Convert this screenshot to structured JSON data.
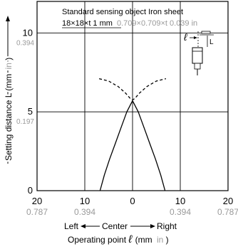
{
  "chart_data": {
    "type": "line",
    "annotation": {
      "line1": "Standard sensing object Iron sheet",
      "line2_main": "18×18×t 1 mm",
      "line2_inch": "0.709×0.709×t 0.039 in"
    },
    "xlabel": {
      "left": "Left",
      "center": "Center",
      "right": "Right",
      "line2_prefix": "Operating point ",
      "symbol": "ℓ",
      "unit_mm": "(mm",
      "unit_in": "in",
      "unit_close": ")"
    },
    "ylabel": {
      "main": "Setting distance L (mm",
      "unit_in": "in",
      "close": ")"
    },
    "diagram_labels": {
      "ell": "ℓ",
      "L": "L"
    },
    "xlim": [
      -20,
      20
    ],
    "ylim": [
      0,
      12
    ],
    "x_ticks": [
      {
        "value": -20,
        "label": "20",
        "inch": "0.787"
      },
      {
        "value": -10,
        "label": "10",
        "inch": "0.394"
      },
      {
        "value": 0,
        "label": "0",
        "inch": ""
      },
      {
        "value": 10,
        "label": "10",
        "inch": "0.394"
      },
      {
        "value": 20,
        "label": "20",
        "inch": "0.787"
      }
    ],
    "y_ticks": [
      {
        "value": 0,
        "label": "0",
        "inch": ""
      },
      {
        "value": 5,
        "label": "5",
        "inch": "0.197"
      },
      {
        "value": 10,
        "label": "10",
        "inch": "0.394"
      }
    ],
    "grid": true,
    "series": [
      {
        "style": "solid",
        "x": [
          -6.8,
          -5.9,
          -4.8,
          -3.6,
          -2.4,
          -1.2,
          0,
          1.2,
          2.4,
          3.6,
          4.8,
          5.9,
          6.8
        ],
        "y": [
          0,
          1,
          2,
          3,
          4,
          5,
          5.7,
          5,
          4,
          3,
          2,
          1,
          0
        ]
      },
      {
        "style": "dashed",
        "x": [
          -7,
          -5,
          -3,
          -1.5,
          -0.5,
          0,
          0.5,
          1.5,
          3,
          5,
          7
        ],
        "y": [
          7.1,
          6.95,
          6.6,
          6.2,
          5.85,
          5.75,
          5.85,
          6.2,
          6.6,
          6.95,
          7.1
        ]
      }
    ]
  }
}
